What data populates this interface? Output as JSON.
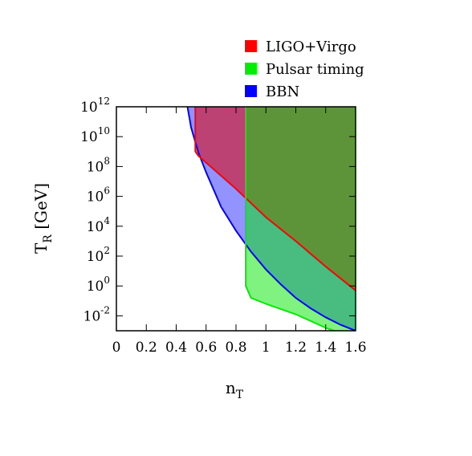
{
  "chart_data": {
    "type": "area",
    "title": "",
    "xlabel": "n",
    "xlabel_sub": "T",
    "ylabel": "T",
    "ylabel_sub": "R",
    "ylabel_unit": " [GeV]",
    "xlim": [
      0,
      1.6
    ],
    "ylim_log10": [
      -3,
      12
    ],
    "y_scale": "log",
    "grid": false,
    "legend_position": "top-right",
    "x_ticks": [
      "0",
      "0.2",
      "0.4",
      "0.6",
      "0.8",
      "1",
      "1.2",
      "1.4",
      "1.6"
    ],
    "x_tick_values": [
      0,
      0.2,
      0.4,
      0.6,
      0.8,
      1.0,
      1.2,
      1.4,
      1.6
    ],
    "y_ticks": [
      {
        "base": "10",
        "exp": "12",
        "log10": 12
      },
      {
        "base": "10",
        "exp": "10",
        "log10": 10
      },
      {
        "base": "10",
        "exp": "8",
        "log10": 8
      },
      {
        "base": "10",
        "exp": "6",
        "log10": 6
      },
      {
        "base": "10",
        "exp": "4",
        "log10": 4
      },
      {
        "base": "10",
        "exp": "2",
        "log10": 2
      },
      {
        "base": "10",
        "exp": "0",
        "log10": 0
      },
      {
        "base": "10",
        "exp": "-2",
        "log10": -2
      }
    ],
    "series": [
      {
        "name": "LIGO+Virgo",
        "color": "#ff0000",
        "fill": "rgba(220,0,0,0.55)",
        "boundary": [
          {
            "x": 0.528,
            "log10_T": 12
          },
          {
            "x": 0.528,
            "log10_T": 9
          },
          {
            "x": 0.55,
            "log10_T": 8.7
          },
          {
            "x": 0.8,
            "log10_T": 6.5
          },
          {
            "x": 1.0,
            "log10_T": 4.6
          },
          {
            "x": 1.2,
            "log10_T": 3.0
          },
          {
            "x": 1.4,
            "log10_T": 1.3
          },
          {
            "x": 1.6,
            "log10_T": -0.3
          }
        ]
      },
      {
        "name": "Pulsar timing",
        "color": "#00ee00",
        "fill": "rgba(0,230,0,0.5)",
        "boundary": [
          {
            "x": 0.865,
            "log10_T": 12
          },
          {
            "x": 0.865,
            "log10_T": 0
          },
          {
            "x": 0.9,
            "log10_T": -0.8
          },
          {
            "x": 1.0,
            "log10_T": -1.2
          },
          {
            "x": 1.2,
            "log10_T": -1.9
          },
          {
            "x": 1.4,
            "log10_T": -2.8
          },
          {
            "x": 1.6,
            "log10_T": -3.5
          }
        ]
      },
      {
        "name": "BBN",
        "color": "#0000ff",
        "fill": "rgba(40,40,255,0.5)",
        "boundary": [
          {
            "x": 0.475,
            "log10_T": 12
          },
          {
            "x": 0.5,
            "log10_T": 10.6
          },
          {
            "x": 0.55,
            "log10_T": 8.9
          },
          {
            "x": 0.6,
            "log10_T": 7.6
          },
          {
            "x": 0.7,
            "log10_T": 5.3
          },
          {
            "x": 0.8,
            "log10_T": 3.7
          },
          {
            "x": 0.9,
            "log10_T": 2.3
          },
          {
            "x": 1.0,
            "log10_T": 1.1
          },
          {
            "x": 1.1,
            "log10_T": 0.1
          },
          {
            "x": 1.2,
            "log10_T": -0.8
          },
          {
            "x": 1.3,
            "log10_T": -1.5
          },
          {
            "x": 1.4,
            "log10_T": -2.1
          },
          {
            "x": 1.5,
            "log10_T": -2.6
          },
          {
            "x": 1.6,
            "log10_T": -3.0
          }
        ]
      }
    ]
  }
}
